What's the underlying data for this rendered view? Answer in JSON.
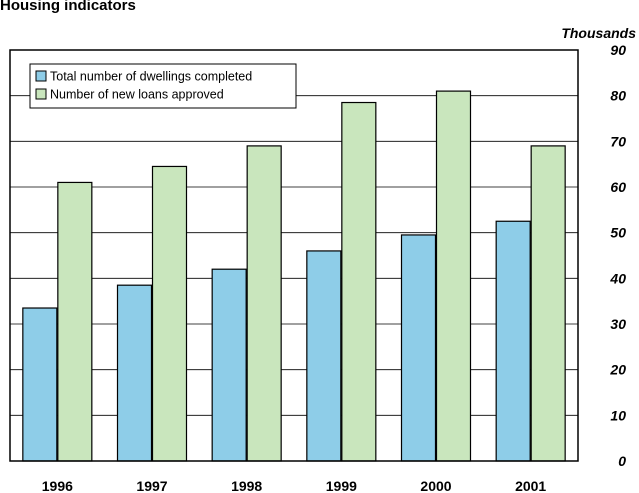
{
  "chart_data": {
    "type": "bar",
    "title": "Housing indicators",
    "unit_label": "Thousands",
    "categories": [
      "1996",
      "1997",
      "1998",
      "1999",
      "2000",
      "2001"
    ],
    "series": [
      {
        "name": "Total number of dwellings completed",
        "values": [
          33.5,
          38.5,
          42,
          46,
          49.5,
          52.5
        ],
        "color": "#8ecde8"
      },
      {
        "name": "Number of new loans approved",
        "values": [
          61,
          64.5,
          69,
          78.5,
          81,
          69
        ],
        "color": "#c9e6bd"
      }
    ],
    "yticks": [
      0,
      10,
      20,
      30,
      40,
      50,
      60,
      70,
      80,
      90
    ],
    "ylim": [
      0,
      90
    ],
    "grid": true,
    "legend_position": "top-left",
    "y_axis_side": "right"
  }
}
